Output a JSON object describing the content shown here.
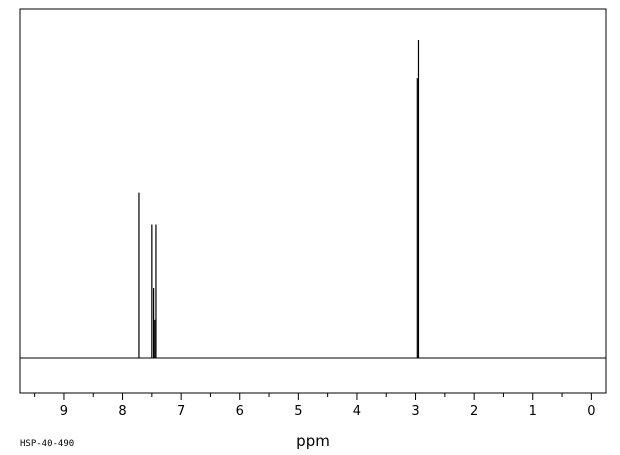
{
  "chart_data": {
    "type": "line",
    "title": "",
    "xlabel": "ppm",
    "ylabel": "",
    "x_reversed": true,
    "xlim": [
      9.75,
      -0.25
    ],
    "ylim": [
      0,
      1
    ],
    "xticks_major": [
      9,
      8,
      7,
      6,
      5,
      4,
      3,
      2,
      1,
      0
    ],
    "xticks_major_labels": [
      "9",
      "8",
      "7",
      "6",
      "5",
      "4",
      "3",
      "2",
      "1",
      "0"
    ],
    "xticks_minor": [
      9.5,
      8.5,
      7.5,
      6.5,
      5.5,
      4.5,
      3.5,
      2.5,
      1.5,
      0.5
    ],
    "grid": false,
    "legend": "none",
    "series": [
      {
        "peaks": [
          {
            "x": 7.72,
            "y": 0.52
          },
          {
            "x": 7.5,
            "y": 0.42
          },
          {
            "x": 7.47,
            "y": 0.22
          },
          {
            "x": 7.45,
            "y": 0.12
          },
          {
            "x": 7.43,
            "y": 0.42
          },
          {
            "x": 2.97,
            "y": 0.88
          },
          {
            "x": 2.95,
            "y": 1.0
          }
        ]
      }
    ],
    "line_color": "#000000"
  },
  "footer": {
    "sample_id": "HSP-40-490"
  }
}
